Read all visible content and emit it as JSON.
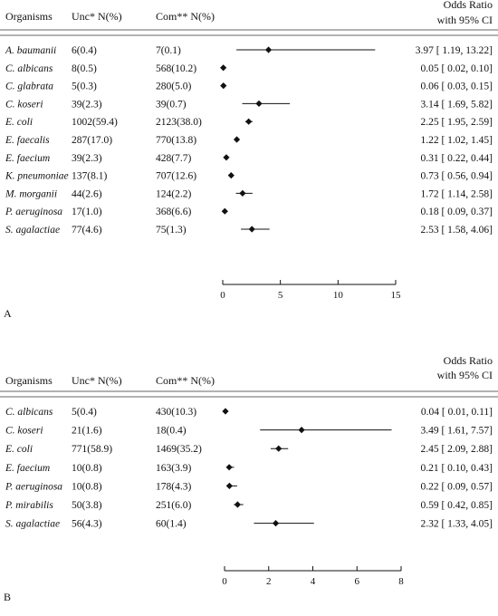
{
  "chart_data": [
    {
      "type": "forest",
      "panel_label": "A",
      "headers": {
        "organisms": "Organisms",
        "unc": "Unc* N(%)",
        "com": "Com** N(%)",
        "or_line1": "Odds Ratio",
        "or_line2": "with 95% CI"
      },
      "xlim": [
        0,
        15
      ],
      "xticks": [
        0,
        5,
        10,
        15
      ],
      "rows": [
        {
          "organism": "A. baumanii",
          "unc": "6(0.4)",
          "com": "7(0.1)",
          "or": 3.97,
          "lo": 1.19,
          "hi": 13.22,
          "ci_text": "3.97 [ 1.19, 13.22]"
        },
        {
          "organism": "C. albicans",
          "unc": "8(0.5)",
          "com": "568(10.2)",
          "or": 0.05,
          "lo": 0.02,
          "hi": 0.1,
          "ci_text": "0.05 [ 0.02,   0.10]"
        },
        {
          "organism": "C. glabrata",
          "unc": "5(0.3)",
          "com": "280(5.0)",
          "or": 0.06,
          "lo": 0.03,
          "hi": 0.15,
          "ci_text": "0.06 [ 0.03,   0.15]"
        },
        {
          "organism": "C. koseri",
          "unc": "39(2.3)",
          "com": "39(0.7)",
          "or": 3.14,
          "lo": 1.69,
          "hi": 5.82,
          "ci_text": "3.14 [ 1.69,   5.82]"
        },
        {
          "organism": "E. coli",
          "unc": "1002(59.4)",
          "com": "2123(38.0)",
          "or": 2.25,
          "lo": 1.95,
          "hi": 2.59,
          "ci_text": "2.25 [ 1.95,   2.59]"
        },
        {
          "organism": "E. faecalis",
          "unc": "287(17.0)",
          "com": "770(13.8)",
          "or": 1.22,
          "lo": 1.02,
          "hi": 1.45,
          "ci_text": "1.22 [ 1.02,   1.45]"
        },
        {
          "organism": "E. faecium",
          "unc": "39(2.3)",
          "com": "428(7.7)",
          "or": 0.31,
          "lo": 0.22,
          "hi": 0.44,
          "ci_text": "0.31 [ 0.22,   0.44]"
        },
        {
          "organism": "K. pneumoniae",
          "unc": "137(8.1)",
          "com": "707(12.6)",
          "or": 0.73,
          "lo": 0.56,
          "hi": 0.94,
          "ci_text": "0.73 [ 0.56,   0.94]"
        },
        {
          "organism": "M. morganii",
          "unc": "44(2.6)",
          "com": "124(2.2)",
          "or": 1.72,
          "lo": 1.14,
          "hi": 2.58,
          "ci_text": "1.72 [ 1.14,   2.58]"
        },
        {
          "organism": "P. aeruginosa",
          "unc": "17(1.0)",
          "com": "368(6.6)",
          "or": 0.18,
          "lo": 0.09,
          "hi": 0.37,
          "ci_text": "0.18 [ 0.09,   0.37]"
        },
        {
          "organism": "S. agalactiae",
          "unc": "77(4.6)",
          "com": "75(1.3)",
          "or": 2.53,
          "lo": 1.58,
          "hi": 4.06,
          "ci_text": "2.53 [ 1.58,   4.06]"
        }
      ]
    },
    {
      "type": "forest",
      "panel_label": "B",
      "headers": {
        "organisms": "Organisms",
        "unc": "Unc* N(%)",
        "com": "Com** N(%)",
        "or_line1": "Odds Ratio",
        "or_line2": "with 95% CI"
      },
      "xlim": [
        0,
        8
      ],
      "xticks": [
        0,
        2,
        4,
        6,
        8
      ],
      "rows": [
        {
          "organism": "C. albicans",
          "unc": "5(0.4)",
          "com": "430(10.3)",
          "or": 0.04,
          "lo": 0.01,
          "hi": 0.11,
          "ci_text": "0.04 [ 0.01, 0.11]"
        },
        {
          "organism": "C. koseri",
          "unc": "21(1.6)",
          "com": "18(0.4)",
          "or": 3.49,
          "lo": 1.61,
          "hi": 7.57,
          "ci_text": "3.49 [ 1.61, 7.57]"
        },
        {
          "organism": "E. coli",
          "unc": "771(58.9)",
          "com": "1469(35.2)",
          "or": 2.45,
          "lo": 2.09,
          "hi": 2.88,
          "ci_text": "2.45 [ 2.09, 2.88]"
        },
        {
          "organism": "E. faecium",
          "unc": "10(0.8)",
          "com": "163(3.9)",
          "or": 0.21,
          "lo": 0.1,
          "hi": 0.43,
          "ci_text": "0.21 [ 0.10, 0.43]"
        },
        {
          "organism": "P. aeruginosa",
          "unc": "10(0.8)",
          "com": "178(4.3)",
          "or": 0.22,
          "lo": 0.09,
          "hi": 0.57,
          "ci_text": "0.22 [ 0.09, 0.57]"
        },
        {
          "organism": "P. mirabilis",
          "unc": "50(3.8)",
          "com": "251(6.0)",
          "or": 0.59,
          "lo": 0.42,
          "hi": 0.85,
          "ci_text": "0.59 [ 0.42, 0.85]"
        },
        {
          "organism": "S. agalactiae",
          "unc": "56(4.3)",
          "com": "60(1.4)",
          "or": 2.32,
          "lo": 1.33,
          "hi": 4.05,
          "ci_text": "2.32 [ 1.33, 4.05]"
        }
      ]
    }
  ]
}
